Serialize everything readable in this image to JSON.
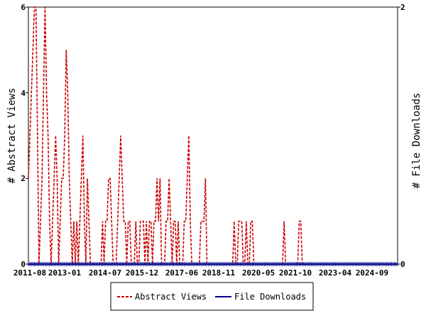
{
  "colors": {
    "abstract_views": "#cc0000",
    "file_downloads": "#00008b",
    "axis": "#000000",
    "background": "#ffffff"
  },
  "chart_data": {
    "type": "line",
    "title": "",
    "y_left_label": "# Abstract Views",
    "y_right_label": "# File Downloads",
    "y_left_lim": [
      0,
      6
    ],
    "y_right_lim": [
      0,
      2
    ],
    "y_left_ticks": [
      "0",
      "2",
      "4",
      "6"
    ],
    "y_right_ticks": [
      "0",
      "2"
    ],
    "x_tick_labels": [
      "2011-08",
      "2013-01",
      "2014-07",
      "2015-12",
      "2017-06",
      "2018-11",
      "2020-05",
      "2021-10",
      "2023-04",
      "2024-09"
    ],
    "x_start": "2011-07",
    "x_end": "2025-12",
    "grid": false,
    "legend_position": "bottom",
    "series": [
      {
        "name": "Abstract Views",
        "axis": "left",
        "style": "dashed",
        "values": [
          2,
          3,
          4,
          5,
          6,
          6,
          3,
          0,
          1,
          2,
          4,
          6,
          4,
          3,
          1,
          0,
          1,
          2,
          3,
          2,
          0,
          1,
          2,
          2,
          3,
          5,
          4,
          2,
          1,
          0,
          1,
          0,
          1,
          0,
          1,
          2,
          3,
          1,
          0,
          2,
          1,
          0,
          0,
          0,
          0,
          0,
          0,
          0,
          0,
          1,
          0,
          1,
          1,
          2,
          2,
          1,
          0,
          0,
          0,
          1,
          2,
          3,
          2,
          1,
          1,
          0,
          1,
          1,
          0,
          0,
          0,
          1,
          0,
          0,
          1,
          1,
          1,
          0,
          1,
          0,
          1,
          1,
          0,
          1,
          1,
          2,
          1,
          2,
          0,
          0,
          0,
          1,
          1,
          2,
          1,
          0,
          1,
          1,
          0,
          1,
          0,
          0,
          0,
          1,
          1,
          2,
          3,
          1,
          0,
          0,
          0,
          0,
          0,
          0,
          1,
          1,
          1,
          2,
          0,
          0,
          0,
          0,
          0,
          0,
          0,
          0,
          0,
          0,
          0,
          0,
          0,
          0,
          0,
          0,
          0,
          0,
          1,
          0,
          0,
          1,
          1,
          1,
          0,
          0,
          1,
          0,
          0,
          1,
          1,
          0,
          0,
          0,
          0,
          0,
          0,
          0,
          0,
          0,
          0,
          0,
          0,
          0,
          0,
          0,
          0,
          0,
          0,
          0,
          0,
          1,
          0,
          0,
          0,
          0,
          0,
          0,
          0,
          0,
          0,
          1,
          1,
          0,
          0,
          0,
          0,
          0,
          0,
          0,
          0,
          0,
          0,
          0,
          0,
          0,
          0,
          0,
          0,
          0,
          0,
          0,
          0,
          0,
          0,
          0,
          0,
          0,
          0,
          0,
          0,
          0,
          0,
          0,
          0,
          0,
          0,
          0,
          0,
          0,
          0,
          0,
          0,
          0,
          0,
          0,
          0,
          0,
          0,
          0,
          0,
          0,
          0,
          0,
          0,
          0,
          0,
          0,
          0,
          0,
          0,
          0,
          0,
          0,
          0,
          0,
          0
        ]
      },
      {
        "name": "File Downloads",
        "axis": "right",
        "style": "solid",
        "values": "all zero"
      }
    ]
  }
}
